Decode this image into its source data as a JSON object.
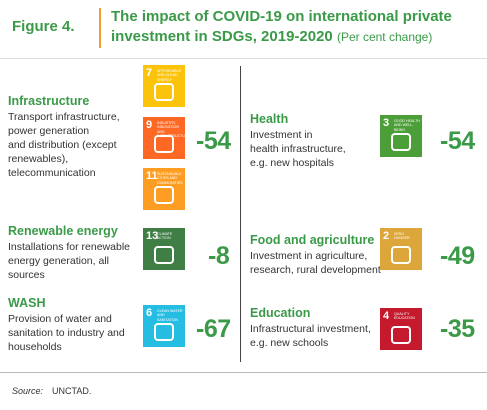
{
  "header": {
    "figure": "Figure 4.",
    "title_lines": [
      "The impact of COVID-19 on international private",
      "investment in SDGs, 2019-2020"
    ],
    "subtitle": "(Per cent change)"
  },
  "sectors": [
    {
      "name": "Infrastructure",
      "description": [
        "Transport infrastructure,",
        "power generation",
        "and distribution (except",
        "renewables),",
        "telecommunication"
      ],
      "icons": [
        {
          "number": "7",
          "label": "AFFORDABLE AND CLEAN ENERGY"
        },
        {
          "number": "9",
          "label": "INDUSTRY, INNOVATION AND INFRASTRUCTURE"
        },
        {
          "number": "11",
          "label": "SUSTAINABLE CITIES AND COMMUNITIES"
        }
      ],
      "change": -54
    },
    {
      "name": "Renewable energy",
      "description": [
        "Installations for renewable",
        "energy generation, all",
        "sources"
      ],
      "icons": [
        {
          "number": "13",
          "label": "CLIMATE ACTION"
        }
      ],
      "change": -8
    },
    {
      "name": "WASH",
      "description": [
        "Provision of water and",
        "sanitation to industry and",
        "households"
      ],
      "icons": [
        {
          "number": "6",
          "label": "CLEAN WATER AND SANITATION"
        }
      ],
      "change": -67
    },
    {
      "name": "Health",
      "description": [
        "Investment in",
        "health infrastructure,",
        "e.g. new hospitals"
      ],
      "icons": [
        {
          "number": "3",
          "label": "GOOD HEALTH AND WELL-BEING"
        }
      ],
      "change": -54
    },
    {
      "name": "Food and agriculture",
      "description": [
        "Investment in agriculture,",
        "research, rural development"
      ],
      "icons": [
        {
          "number": "2",
          "label": "ZERO HUNGER"
        }
      ],
      "change": -49
    },
    {
      "name": "Education",
      "description": [
        "Infrastructural investment,",
        "e.g. new schools"
      ],
      "icons": [
        {
          "number": "4",
          "label": "QUALITY EDUCATION"
        }
      ],
      "change": -35
    }
  ],
  "source": {
    "label": "Source:",
    "text": "UNCTAD."
  }
}
